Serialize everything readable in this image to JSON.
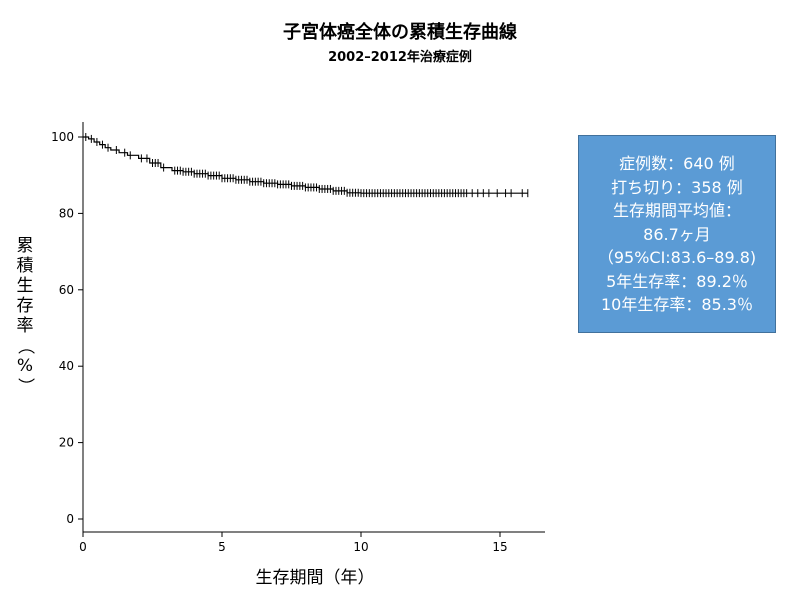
{
  "chart_data": {
    "type": "line",
    "title": "子宮体癌全体の累積生存曲線",
    "subtitle": "2002–2012年治療症例",
    "xlabel": "生存期間（年）",
    "ylabel_chars": [
      "累",
      "積",
      "生",
      "存",
      "率",
      "（",
      "%",
      "）"
    ],
    "xlim": [
      0,
      16.5
    ],
    "ylim": [
      0,
      100
    ],
    "x_ticks": [
      "0",
      "5",
      "10",
      "15"
    ],
    "y_ticks": [
      "0",
      "20",
      "40",
      "60",
      "80",
      "100"
    ],
    "grid": false,
    "series": [
      {
        "x": [
          0,
          0.2,
          0.4,
          0.6,
          0.8,
          1.0,
          1.3,
          1.6,
          2.0,
          2.4,
          2.8,
          3.2,
          3.6,
          4.0,
          4.5,
          5.0,
          5.5,
          6.0,
          6.5,
          7.0,
          7.5,
          8.0,
          8.5,
          9.0,
          9.5,
          10.0,
          11.0,
          12.0,
          13.0,
          14.0,
          15.0,
          16.0
        ],
        "values": [
          100,
          99.5,
          98.7,
          98.0,
          97.2,
          96.6,
          95.9,
          95.2,
          94.4,
          93.2,
          92.0,
          91.2,
          90.9,
          90.4,
          89.9,
          89.2,
          88.8,
          88.3,
          87.9,
          87.6,
          87.2,
          86.8,
          86.4,
          85.9,
          85.4,
          85.3,
          85.3,
          85.3,
          85.3,
          85.3,
          85.3,
          85.3
        ]
      }
    ],
    "censor_marks": [
      0.1,
      0.3,
      0.5,
      0.7,
      0.9,
      1.2,
      1.5,
      1.7,
      2.1,
      2.3,
      2.5,
      2.6,
      2.7,
      2.9,
      3.3,
      3.4,
      3.5,
      3.6,
      3.7,
      3.8,
      3.9,
      4.0,
      4.1,
      4.2,
      4.3,
      4.4,
      4.5,
      4.6,
      4.7,
      4.8,
      4.9,
      5.0,
      5.1,
      5.2,
      5.3,
      5.4,
      5.5,
      5.6,
      5.7,
      5.8,
      5.9,
      6.0,
      6.1,
      6.2,
      6.3,
      6.4,
      6.5,
      6.6,
      6.7,
      6.8,
      6.9,
      7.0,
      7.1,
      7.2,
      7.3,
      7.4,
      7.5,
      7.6,
      7.7,
      7.8,
      7.9,
      8.0,
      8.1,
      8.2,
      8.3,
      8.4,
      8.5,
      8.6,
      8.7,
      8.8,
      8.9,
      9.0,
      9.1,
      9.2,
      9.3,
      9.4,
      9.5,
      9.6,
      9.7,
      9.8,
      9.9,
      10.0,
      10.1,
      10.2,
      10.3,
      10.4,
      10.5,
      10.6,
      10.7,
      10.8,
      10.9,
      11.0,
      11.1,
      11.2,
      11.3,
      11.4,
      11.5,
      11.6,
      11.7,
      11.8,
      11.9,
      12.0,
      12.1,
      12.2,
      12.3,
      12.4,
      12.5,
      12.6,
      12.7,
      12.8,
      12.9,
      13.0,
      13.1,
      13.2,
      13.3,
      13.4,
      13.5,
      13.6,
      13.7,
      13.8,
      14.0,
      14.2,
      14.4,
      14.6,
      14.9,
      15.2,
      15.4,
      15.8,
      16.0
    ],
    "line_color": "#000000"
  },
  "infobox": {
    "lines": [
      "症例数：640 例",
      "打ち切り：358 例",
      "生存期間平均値：",
      "86.7ヶ月",
      "（95%CI:83.6–89.8)",
      "5年生存率：89.2％",
      "10年生存率：85.3％"
    ],
    "background": "#5b9bd5"
  }
}
